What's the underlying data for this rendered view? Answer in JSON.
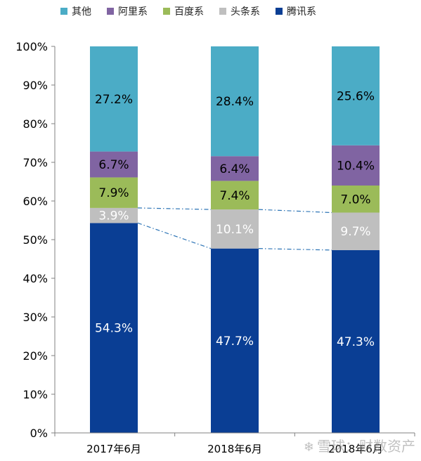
{
  "chart_data": {
    "type": "bar",
    "stacked": true,
    "categories": [
      "2017年6月",
      "2018年6月",
      "2018年6月"
    ],
    "series": [
      {
        "name": "腾讯系",
        "values": [
          54.3,
          47.7,
          47.3
        ],
        "color": "#0A3E94",
        "label_color": "#ffffff"
      },
      {
        "name": "头条系",
        "values": [
          3.9,
          10.1,
          9.7
        ],
        "color": "#BFBFBF",
        "label_color": "#ffffff"
      },
      {
        "name": "百度系",
        "values": [
          7.9,
          7.4,
          7.0
        ],
        "color": "#9BBB59",
        "label_color": "#000000"
      },
      {
        "name": "阿里系",
        "values": [
          6.7,
          6.4,
          10.4
        ],
        "color": "#8064A2",
        "label_color": "#000000"
      },
      {
        "name": "其他",
        "values": [
          27.2,
          28.4,
          25.6
        ],
        "color": "#4BACC6",
        "label_color": "#000000"
      }
    ],
    "data_labels": [
      [
        "54.3%",
        "3.9%",
        "7.9%",
        "6.7%",
        "27.2%"
      ],
      [
        "47.7%",
        "10.1%",
        "7.4%",
        "6.4%",
        "28.4%"
      ],
      [
        "47.3%",
        "9.7%",
        "7.0%",
        "10.4%",
        "25.6%"
      ]
    ],
    "legend_order": [
      "其他",
      "阿里系",
      "百度系",
      "头条系",
      "腾讯系"
    ],
    "y_ticks": [
      "0%",
      "10%",
      "20%",
      "30%",
      "40%",
      "50%",
      "60%",
      "70%",
      "80%",
      "90%",
      "100%"
    ],
    "ylim": [
      0,
      100
    ],
    "legend_position": "top",
    "grid": false,
    "connector_lines": "dash-dot lines linking top and bottom of 头条系 segment across bars",
    "connector_color": "#2E75B6"
  },
  "watermark": {
    "text": "雪球：财数资产",
    "icon": "snowball-icon"
  }
}
